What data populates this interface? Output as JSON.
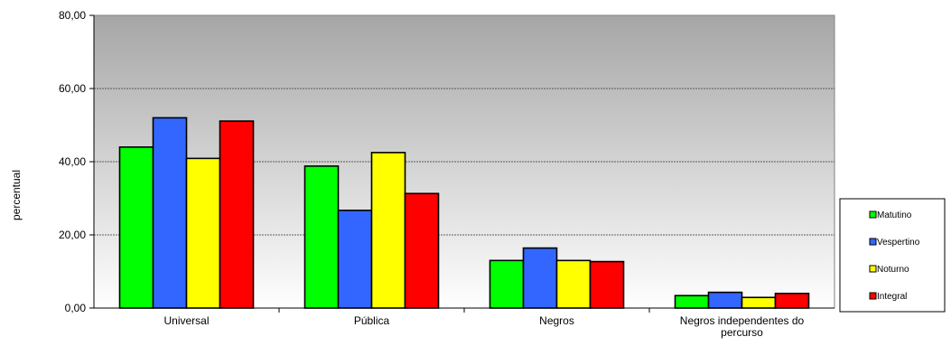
{
  "chart_data": {
    "type": "bar",
    "title": "",
    "xlabel": "",
    "ylabel": "percentual",
    "ylim": [
      0,
      80
    ],
    "yticks": [
      "0,00",
      "20,00",
      "40,00",
      "60,00",
      "80,00"
    ],
    "grid": true,
    "legend_position": "right",
    "categories": [
      "Universal",
      "Pública",
      "Negros",
      "Negros independentes do percurso"
    ],
    "series": [
      {
        "name": "Matutino",
        "color": "#00ff00",
        "values": [
          44.0,
          38.8,
          13.0,
          3.4
        ]
      },
      {
        "name": "Vespertino",
        "color": "#3366ff",
        "values": [
          52.0,
          26.7,
          16.4,
          4.3
        ]
      },
      {
        "name": "Noturno",
        "color": "#ffff00",
        "values": [
          40.9,
          42.5,
          13.0,
          2.9
        ]
      },
      {
        "name": "Integral",
        "color": "#ff0000",
        "values": [
          51.1,
          31.3,
          12.7,
          4.0
        ]
      }
    ]
  }
}
